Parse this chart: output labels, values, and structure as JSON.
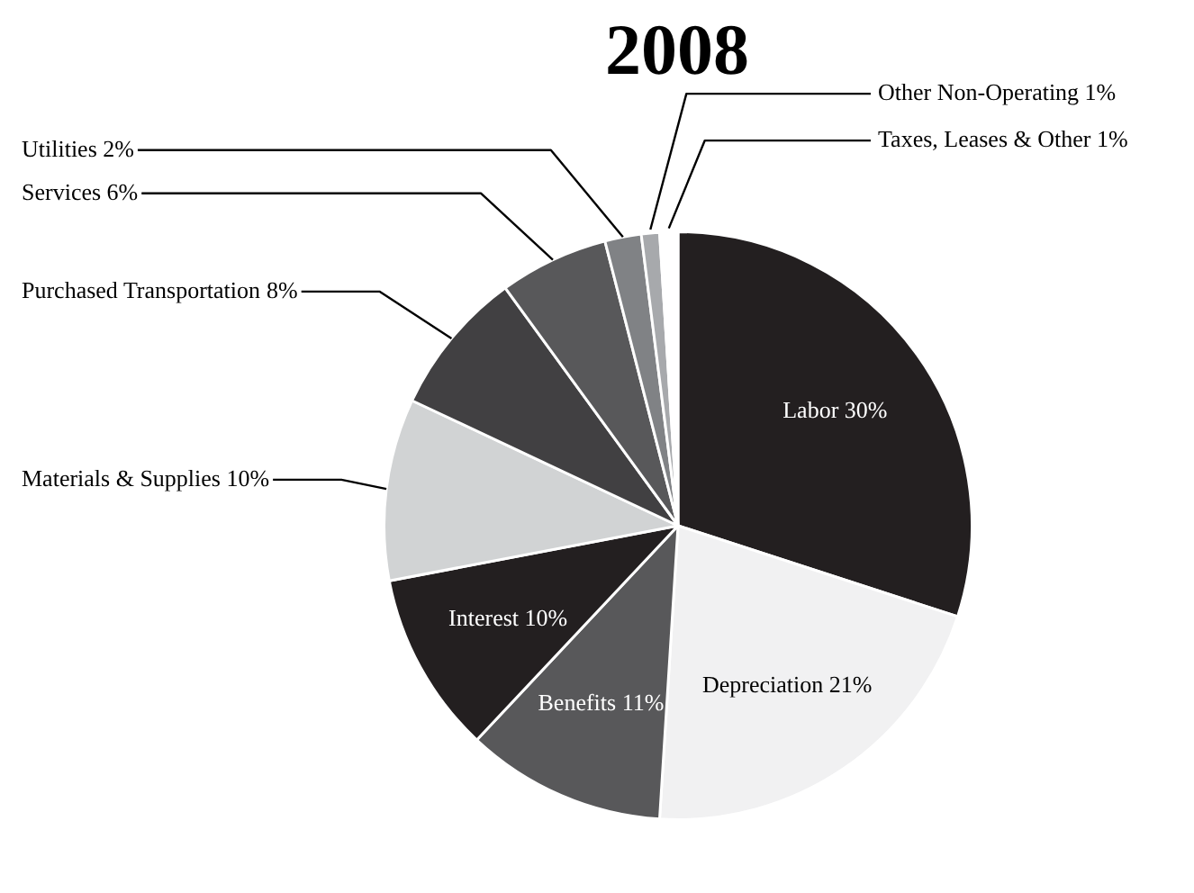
{
  "chart_data": {
    "type": "pie",
    "title": "2008",
    "categories": [
      "Labor",
      "Depreciation",
      "Benefits",
      "Interest",
      "Materials & Supplies",
      "Purchased Transportation",
      "Services",
      "Utilities",
      "Other Non-Operating",
      "Taxes, Leases & Other"
    ],
    "values": [
      30,
      21,
      11,
      10,
      10,
      8,
      6,
      2,
      1,
      1
    ],
    "colors": [
      "#231f20",
      "#f1f1f2",
      "#58585a",
      "#231f20",
      "#d1d3d4",
      "#414042",
      "#58585a",
      "#808285",
      "#a7a9ac",
      "#ffffff"
    ],
    "value_labels": [
      "30%",
      "21%",
      "11%",
      "10%",
      "10%",
      "8%",
      "6%",
      "2%",
      "1%",
      "1%"
    ]
  }
}
